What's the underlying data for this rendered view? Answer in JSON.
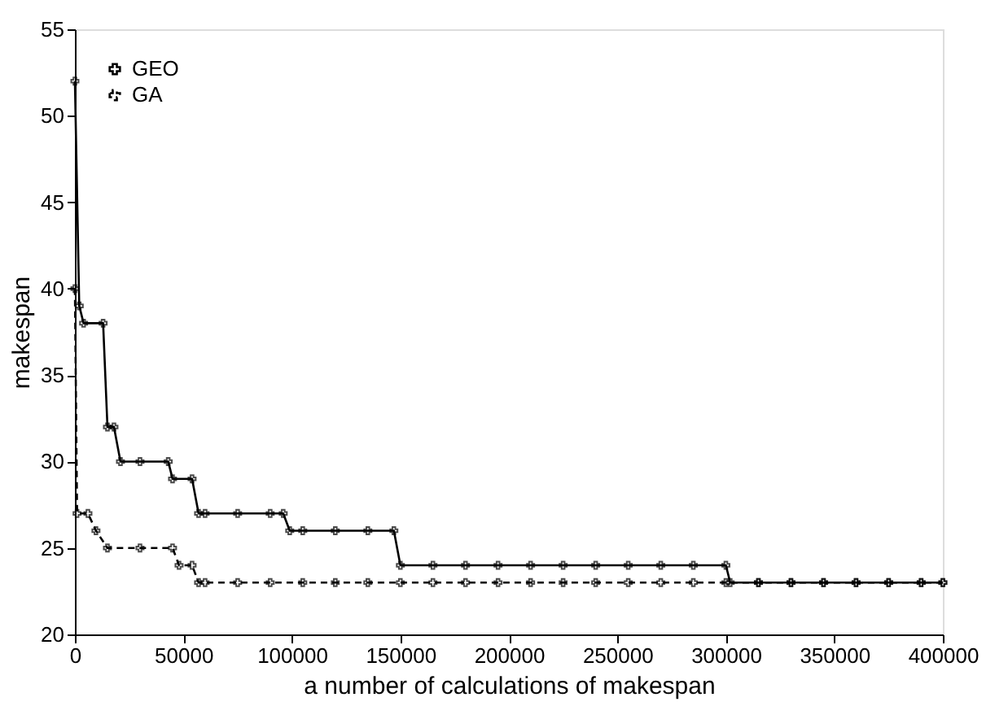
{
  "chart_data": {
    "type": "line",
    "xlabel": "a number of calculations of makespan",
    "ylabel": "makespan",
    "xlim": [
      0,
      400000
    ],
    "xticks": [
      0,
      50000,
      100000,
      150000,
      200000,
      250000,
      300000,
      350000,
      400000
    ],
    "ylim": [
      20,
      55
    ],
    "yticks": [
      20,
      25,
      30,
      35,
      40,
      45,
      50,
      55
    ],
    "grid": false,
    "legend": "top left",
    "series": [
      {
        "name": "GEO",
        "color": "#000000",
        "line_style": "solid",
        "marker": "cross",
        "x": [
          0,
          2000,
          4000,
          13000,
          15000,
          18000,
          21000,
          30000,
          43000,
          45000,
          54000,
          57000,
          60000,
          75000,
          90000,
          96000,
          99000,
          105000,
          120000,
          135000,
          147000,
          150000,
          165000,
          180000,
          195000,
          210000,
          225000,
          240000,
          255000,
          270000,
          285000,
          300000,
          302000,
          315000,
          330000,
          345000,
          360000,
          375000,
          390000,
          400000
        ],
        "values": [
          52,
          39,
          38,
          38,
          32,
          32,
          30,
          30,
          30,
          29,
          29,
          27,
          27,
          27,
          27,
          27,
          26,
          26,
          26,
          26,
          26,
          24,
          24,
          24,
          24,
          24,
          24,
          24,
          24,
          24,
          24,
          24,
          23,
          23,
          23,
          23,
          23,
          23,
          23,
          23
        ]
      },
      {
        "name": "GA",
        "color": "#000000",
        "line_style": "dashed",
        "marker": "cross",
        "x": [
          0,
          1000,
          6000,
          9700,
          15000,
          30000,
          45000,
          48000,
          54000,
          57000,
          60000,
          75000,
          90000,
          105000,
          120000,
          135000,
          150000,
          165000,
          180000,
          195000,
          210000,
          225000,
          240000,
          255000,
          270000,
          285000,
          300000,
          315000,
          330000,
          345000,
          360000,
          375000,
          390000,
          400000
        ],
        "values": [
          40,
          27,
          27,
          26,
          25,
          25,
          25,
          24,
          24,
          23,
          23,
          23,
          23,
          23,
          23,
          23,
          23,
          23,
          23,
          23,
          23,
          23,
          23,
          23,
          23,
          23,
          23,
          23,
          23,
          23,
          23,
          23,
          23,
          23
        ]
      }
    ]
  }
}
